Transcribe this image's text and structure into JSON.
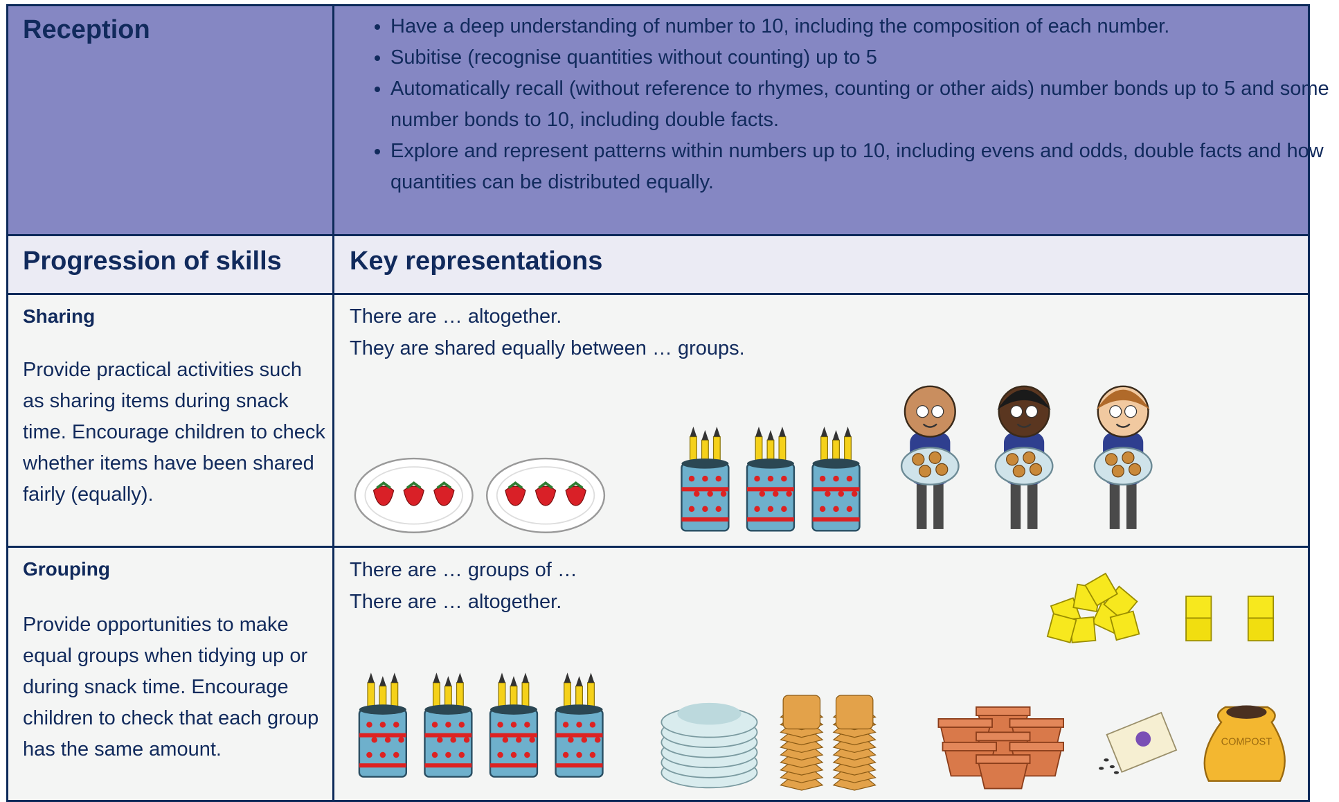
{
  "header": {
    "title": "Reception",
    "bullets": [
      "Have a deep understanding of number to 10, including the composition of each number.",
      "Subitise (recognise quantities without counting) up to 5",
      "Automatically recall (without reference to rhymes, counting or other aids) number bonds up to 5 and some number bonds to 10, including double facts.",
      "Explore and represent patterns within numbers up to 10, including evens and odds, double facts and how quantities can be distributed equally."
    ]
  },
  "columns": [
    "Progression of skills",
    "Key representations"
  ],
  "rows": [
    {
      "title": "Sharing",
      "description": "Provide practical activities such as sharing items during snack time.  Encourage children to check whether items have been shared fairly (equally).",
      "prompts": [
        "There are … altogether.",
        "They are shared equally between … groups."
      ]
    },
    {
      "title": "Grouping",
      "description": "Provide opportunities to make equal groups when tidying up or during snack time. Encourage children to check that each group has the same amount.",
      "prompts": [
        "There are … groups of …",
        "There are … altogether."
      ]
    }
  ],
  "labels": {
    "compost": "COMPOST"
  }
}
